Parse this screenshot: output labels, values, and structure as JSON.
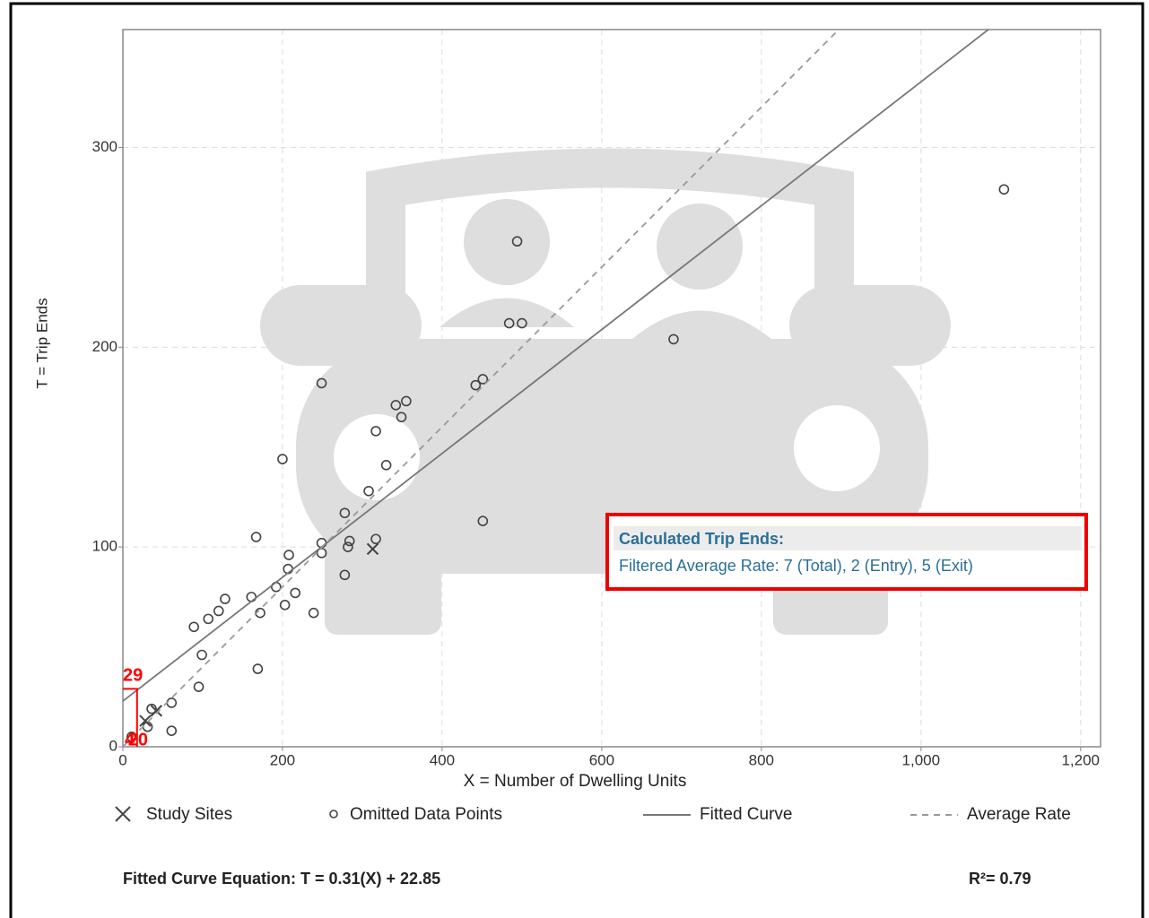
{
  "chart_data": {
    "type": "scatter",
    "x_label": "X = Number of Dwelling Units",
    "y_label": "T = Trip Ends",
    "xlim": [
      0,
      1225
    ],
    "ylim": [
      0,
      359
    ],
    "xticks": [
      0,
      200,
      400,
      600,
      800,
      {
        "value": 1000,
        "label": "1,000"
      },
      {
        "value": 1200,
        "label": "1,200"
      }
    ],
    "yticks": [
      0,
      100,
      200,
      300
    ],
    "grid": true,
    "series": [
      {
        "name": "Study Sites",
        "marker": "x",
        "color": "#444444",
        "x": [
          313,
          42,
          28
        ],
        "values": [
          99,
          18,
          13
        ]
      },
      {
        "name": "Omitted Data Points",
        "marker": "o",
        "color": "#444444",
        "x": [
          1104,
          494,
          484,
          500,
          690,
          249,
          442,
          451,
          342,
          355,
          349,
          317,
          200,
          330,
          308,
          451,
          278,
          167,
          284,
          317,
          249,
          249,
          282,
          208,
          207,
          278,
          192,
          216,
          161,
          128,
          203,
          172,
          239,
          120,
          107,
          89,
          99,
          169,
          95,
          61,
          36,
          61,
          31,
          11
        ],
        "values": [
          279,
          253,
          212,
          212,
          204,
          182,
          181,
          184,
          171,
          173,
          165,
          158,
          144,
          141,
          128,
          113,
          117,
          105,
          103,
          104,
          102,
          97,
          100,
          96,
          89,
          86,
          80,
          77,
          75,
          74,
          71,
          67,
          67,
          68,
          64,
          60,
          46,
          39,
          30,
          22,
          19,
          8,
          10,
          5
        ]
      },
      {
        "name": "Fitted Curve",
        "line": "solid",
        "color": "#777777",
        "x": [
          0,
          1085
        ],
        "values": [
          22.85,
          359.2
        ]
      },
      {
        "name": "Average Rate",
        "line": "dashed",
        "color": "#999999",
        "x": [
          0,
          897
        ],
        "values": [
          0,
          359
        ]
      }
    ],
    "reference": {
      "x": 20,
      "y": 29,
      "color": "#ff0000",
      "note": "4"
    },
    "callout": {
      "title": "Calculated Trip Ends:",
      "text": "Filtered Average Rate: 7 (Total), 2 (Entry), 5 (Exit)"
    },
    "equation": "Fitted Curve Equation: T = 0.31(X) + 22.85",
    "r_squared": "R²= 0.79"
  }
}
